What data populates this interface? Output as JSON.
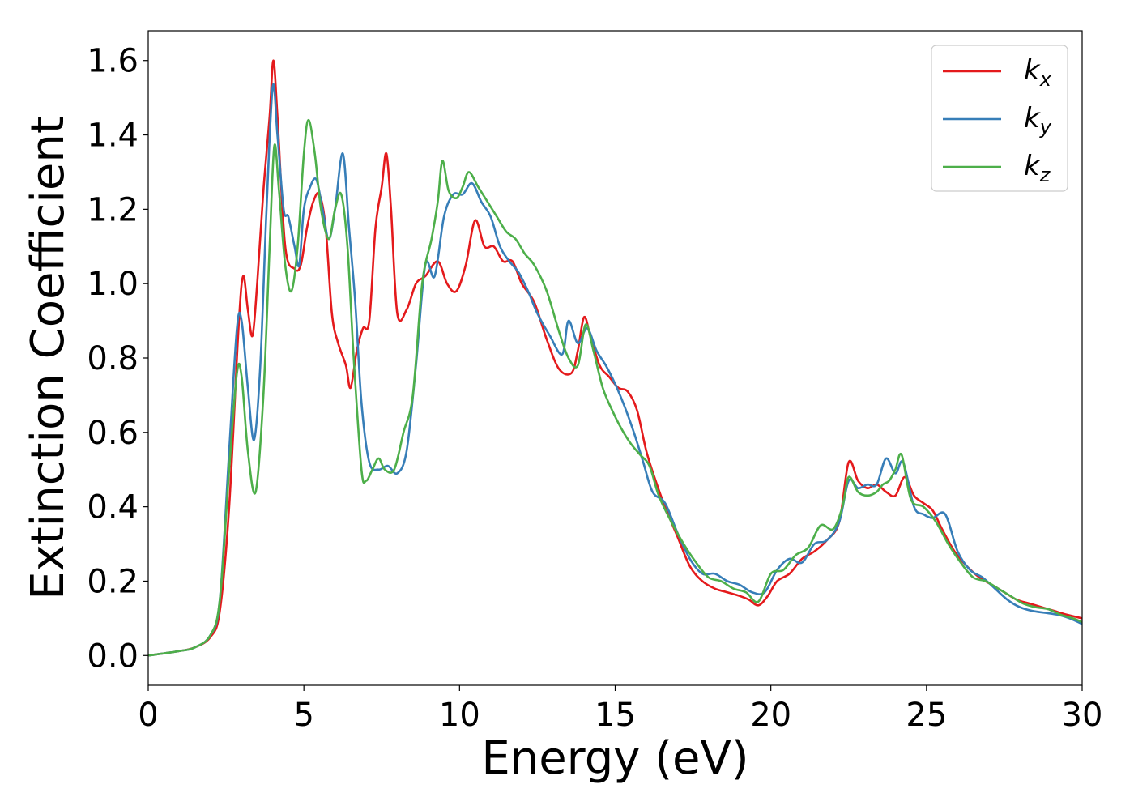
{
  "chart_data": {
    "type": "line",
    "xlabel": "Energy (eV)",
    "ylabel": "Extinction Coefficient",
    "xlim": [
      0,
      30
    ],
    "ylim": [
      -0.08,
      1.68
    ],
    "xticks": [
      0,
      5,
      10,
      15,
      20,
      25,
      30
    ],
    "xtick_labels": [
      "0",
      "5",
      "10",
      "15",
      "20",
      "25",
      "30"
    ],
    "yticks": [
      0.0,
      0.2,
      0.4,
      0.6,
      0.8,
      1.0,
      1.2,
      1.4,
      1.6
    ],
    "ytick_labels": [
      "0.0",
      "0.2",
      "0.4",
      "0.6",
      "0.8",
      "1.0",
      "1.2",
      "1.4",
      "1.6"
    ],
    "grid": false,
    "legend_position": "top-right",
    "series": [
      {
        "name": "k_x",
        "label_main": "k",
        "label_sub": "x",
        "color": "#e41a1c",
        "points": [
          [
            0,
            0.0
          ],
          [
            1,
            0.012
          ],
          [
            1.5,
            0.022
          ],
          [
            2,
            0.05
          ],
          [
            2.3,
            0.12
          ],
          [
            2.6,
            0.4
          ],
          [
            2.9,
            0.88
          ],
          [
            3.05,
            1.02
          ],
          [
            3.2,
            0.93
          ],
          [
            3.35,
            0.86
          ],
          [
            3.5,
            1.0
          ],
          [
            3.7,
            1.25
          ],
          [
            3.9,
            1.45
          ],
          [
            4.02,
            1.6
          ],
          [
            4.15,
            1.45
          ],
          [
            4.4,
            1.1
          ],
          [
            4.7,
            1.04
          ],
          [
            4.9,
            1.05
          ],
          [
            5.1,
            1.15
          ],
          [
            5.3,
            1.22
          ],
          [
            5.5,
            1.24
          ],
          [
            5.7,
            1.15
          ],
          [
            5.9,
            0.92
          ],
          [
            6.1,
            0.84
          ],
          [
            6.35,
            0.78
          ],
          [
            6.5,
            0.72
          ],
          [
            6.7,
            0.82
          ],
          [
            6.9,
            0.88
          ],
          [
            7.1,
            0.9
          ],
          [
            7.3,
            1.15
          ],
          [
            7.5,
            1.26
          ],
          [
            7.65,
            1.35
          ],
          [
            7.8,
            1.2
          ],
          [
            8.0,
            0.92
          ],
          [
            8.3,
            0.93
          ],
          [
            8.6,
            1.0
          ],
          [
            8.9,
            1.02
          ],
          [
            9.3,
            1.06
          ],
          [
            9.6,
            1.0
          ],
          [
            9.9,
            0.98
          ],
          [
            10.2,
            1.05
          ],
          [
            10.5,
            1.17
          ],
          [
            10.8,
            1.1
          ],
          [
            11.1,
            1.1
          ],
          [
            11.4,
            1.06
          ],
          [
            11.7,
            1.06
          ],
          [
            12.0,
            1.0
          ],
          [
            12.4,
            0.95
          ],
          [
            12.8,
            0.85
          ],
          [
            13.2,
            0.77
          ],
          [
            13.6,
            0.76
          ],
          [
            13.8,
            0.82
          ],
          [
            14.0,
            0.91
          ],
          [
            14.2,
            0.86
          ],
          [
            14.5,
            0.78
          ],
          [
            14.8,
            0.75
          ],
          [
            15.1,
            0.72
          ],
          [
            15.4,
            0.71
          ],
          [
            15.7,
            0.66
          ],
          [
            16.0,
            0.55
          ],
          [
            16.3,
            0.47
          ],
          [
            16.6,
            0.4
          ],
          [
            17.0,
            0.32
          ],
          [
            17.4,
            0.24
          ],
          [
            17.8,
            0.2
          ],
          [
            18.2,
            0.18
          ],
          [
            18.6,
            0.17
          ],
          [
            19.0,
            0.16
          ],
          [
            19.3,
            0.15
          ],
          [
            19.6,
            0.135
          ],
          [
            19.9,
            0.16
          ],
          [
            20.2,
            0.2
          ],
          [
            20.6,
            0.22
          ],
          [
            21.0,
            0.26
          ],
          [
            21.4,
            0.28
          ],
          [
            21.8,
            0.31
          ],
          [
            22.2,
            0.36
          ],
          [
            22.5,
            0.52
          ],
          [
            22.8,
            0.47
          ],
          [
            23.1,
            0.45
          ],
          [
            23.4,
            0.46
          ],
          [
            23.7,
            0.44
          ],
          [
            24.0,
            0.43
          ],
          [
            24.3,
            0.48
          ],
          [
            24.6,
            0.43
          ],
          [
            24.9,
            0.41
          ],
          [
            25.2,
            0.39
          ],
          [
            25.5,
            0.34
          ],
          [
            25.9,
            0.28
          ],
          [
            26.3,
            0.24
          ],
          [
            26.7,
            0.21
          ],
          [
            27.1,
            0.19
          ],
          [
            27.5,
            0.17
          ],
          [
            27.9,
            0.15
          ],
          [
            28.3,
            0.14
          ],
          [
            28.7,
            0.13
          ],
          [
            29.1,
            0.12
          ],
          [
            29.5,
            0.11
          ],
          [
            30.0,
            0.1
          ]
        ]
      },
      {
        "name": "k_y",
        "label_main": "k",
        "label_sub": "y",
        "color": "#377eb8",
        "points": [
          [
            0,
            0.0
          ],
          [
            1,
            0.012
          ],
          [
            1.5,
            0.022
          ],
          [
            2,
            0.055
          ],
          [
            2.3,
            0.15
          ],
          [
            2.6,
            0.55
          ],
          [
            2.85,
            0.88
          ],
          [
            3.0,
            0.9
          ],
          [
            3.2,
            0.72
          ],
          [
            3.4,
            0.58
          ],
          [
            3.6,
            0.78
          ],
          [
            3.8,
            1.2
          ],
          [
            4.0,
            1.53
          ],
          [
            4.15,
            1.4
          ],
          [
            4.35,
            1.2
          ],
          [
            4.5,
            1.18
          ],
          [
            4.7,
            1.1
          ],
          [
            4.85,
            1.05
          ],
          [
            5.0,
            1.2
          ],
          [
            5.2,
            1.26
          ],
          [
            5.4,
            1.28
          ],
          [
            5.6,
            1.2
          ],
          [
            5.8,
            1.12
          ],
          [
            6.0,
            1.2
          ],
          [
            6.25,
            1.35
          ],
          [
            6.45,
            1.15
          ],
          [
            6.65,
            0.95
          ],
          [
            6.85,
            0.68
          ],
          [
            7.1,
            0.52
          ],
          [
            7.4,
            0.5
          ],
          [
            7.7,
            0.51
          ],
          [
            8.0,
            0.49
          ],
          [
            8.3,
            0.55
          ],
          [
            8.6,
            0.78
          ],
          [
            8.9,
            1.05
          ],
          [
            9.2,
            1.02
          ],
          [
            9.5,
            1.18
          ],
          [
            9.8,
            1.24
          ],
          [
            10.1,
            1.24
          ],
          [
            10.4,
            1.27
          ],
          [
            10.7,
            1.22
          ],
          [
            11.0,
            1.18
          ],
          [
            11.3,
            1.1
          ],
          [
            11.6,
            1.06
          ],
          [
            11.9,
            1.03
          ],
          [
            12.2,
            0.98
          ],
          [
            12.5,
            0.92
          ],
          [
            12.9,
            0.86
          ],
          [
            13.3,
            0.81
          ],
          [
            13.5,
            0.9
          ],
          [
            13.8,
            0.84
          ],
          [
            14.1,
            0.88
          ],
          [
            14.4,
            0.82
          ],
          [
            14.7,
            0.78
          ],
          [
            15.0,
            0.73
          ],
          [
            15.3,
            0.67
          ],
          [
            15.6,
            0.6
          ],
          [
            15.9,
            0.52
          ],
          [
            16.2,
            0.44
          ],
          [
            16.6,
            0.41
          ],
          [
            17.0,
            0.33
          ],
          [
            17.4,
            0.26
          ],
          [
            17.8,
            0.22
          ],
          [
            18.2,
            0.22
          ],
          [
            18.6,
            0.2
          ],
          [
            19.0,
            0.19
          ],
          [
            19.4,
            0.17
          ],
          [
            19.8,
            0.17
          ],
          [
            20.2,
            0.23
          ],
          [
            20.6,
            0.26
          ],
          [
            21.0,
            0.25
          ],
          [
            21.4,
            0.3
          ],
          [
            21.8,
            0.31
          ],
          [
            22.2,
            0.36
          ],
          [
            22.5,
            0.47
          ],
          [
            22.8,
            0.45
          ],
          [
            23.1,
            0.46
          ],
          [
            23.4,
            0.46
          ],
          [
            23.7,
            0.53
          ],
          [
            24.0,
            0.49
          ],
          [
            24.25,
            0.52
          ],
          [
            24.6,
            0.4
          ],
          [
            24.9,
            0.38
          ],
          [
            25.2,
            0.37
          ],
          [
            25.6,
            0.38
          ],
          [
            26.0,
            0.28
          ],
          [
            26.4,
            0.23
          ],
          [
            26.8,
            0.21
          ],
          [
            27.2,
            0.18
          ],
          [
            27.6,
            0.15
          ],
          [
            28.0,
            0.13
          ],
          [
            28.4,
            0.12
          ],
          [
            28.8,
            0.115
          ],
          [
            29.2,
            0.11
          ],
          [
            29.6,
            0.1
          ],
          [
            30.0,
            0.085
          ]
        ]
      },
      {
        "name": "k_z",
        "label_main": "k",
        "label_sub": "z",
        "color": "#4daf4a",
        "points": [
          [
            0,
            0.0
          ],
          [
            1,
            0.012
          ],
          [
            1.5,
            0.022
          ],
          [
            2,
            0.055
          ],
          [
            2.3,
            0.15
          ],
          [
            2.6,
            0.5
          ],
          [
            2.85,
            0.76
          ],
          [
            3.0,
            0.75
          ],
          [
            3.2,
            0.55
          ],
          [
            3.45,
            0.44
          ],
          [
            3.7,
            0.7
          ],
          [
            3.9,
            1.1
          ],
          [
            4.05,
            1.37
          ],
          [
            4.2,
            1.25
          ],
          [
            4.4,
            1.05
          ],
          [
            4.6,
            0.98
          ],
          [
            4.8,
            1.1
          ],
          [
            5.0,
            1.35
          ],
          [
            5.15,
            1.44
          ],
          [
            5.35,
            1.35
          ],
          [
            5.55,
            1.2
          ],
          [
            5.8,
            1.12
          ],
          [
            6.0,
            1.2
          ],
          [
            6.2,
            1.24
          ],
          [
            6.4,
            1.1
          ],
          [
            6.6,
            0.8
          ],
          [
            6.85,
            0.5
          ],
          [
            7.0,
            0.47
          ],
          [
            7.2,
            0.5
          ],
          [
            7.4,
            0.53
          ],
          [
            7.6,
            0.5
          ],
          [
            7.9,
            0.5
          ],
          [
            8.2,
            0.6
          ],
          [
            8.5,
            0.7
          ],
          [
            8.8,
            1.0
          ],
          [
            9.1,
            1.12
          ],
          [
            9.3,
            1.22
          ],
          [
            9.45,
            1.33
          ],
          [
            9.65,
            1.25
          ],
          [
            9.9,
            1.23
          ],
          [
            10.1,
            1.26
          ],
          [
            10.3,
            1.3
          ],
          [
            10.6,
            1.26
          ],
          [
            10.9,
            1.22
          ],
          [
            11.2,
            1.18
          ],
          [
            11.5,
            1.14
          ],
          [
            11.8,
            1.12
          ],
          [
            12.1,
            1.08
          ],
          [
            12.4,
            1.05
          ],
          [
            12.8,
            0.98
          ],
          [
            13.2,
            0.87
          ],
          [
            13.5,
            0.8
          ],
          [
            13.8,
            0.78
          ],
          [
            14.05,
            0.89
          ],
          [
            14.3,
            0.82
          ],
          [
            14.6,
            0.72
          ],
          [
            14.9,
            0.66
          ],
          [
            15.2,
            0.61
          ],
          [
            15.5,
            0.57
          ],
          [
            15.8,
            0.54
          ],
          [
            16.1,
            0.51
          ],
          [
            16.4,
            0.43
          ],
          [
            16.8,
            0.36
          ],
          [
            17.2,
            0.3
          ],
          [
            17.6,
            0.25
          ],
          [
            18.0,
            0.21
          ],
          [
            18.4,
            0.2
          ],
          [
            18.8,
            0.18
          ],
          [
            19.2,
            0.17
          ],
          [
            19.6,
            0.145
          ],
          [
            20.0,
            0.22
          ],
          [
            20.4,
            0.23
          ],
          [
            20.8,
            0.27
          ],
          [
            21.2,
            0.29
          ],
          [
            21.6,
            0.35
          ],
          [
            22.0,
            0.34
          ],
          [
            22.3,
            0.4
          ],
          [
            22.5,
            0.48
          ],
          [
            22.8,
            0.44
          ],
          [
            23.1,
            0.43
          ],
          [
            23.4,
            0.44
          ],
          [
            23.6,
            0.46
          ],
          [
            23.8,
            0.47
          ],
          [
            24.0,
            0.5
          ],
          [
            24.2,
            0.54
          ],
          [
            24.5,
            0.42
          ],
          [
            24.9,
            0.4
          ],
          [
            25.3,
            0.36
          ],
          [
            25.7,
            0.3
          ],
          [
            26.1,
            0.25
          ],
          [
            26.5,
            0.21
          ],
          [
            26.9,
            0.2
          ],
          [
            27.3,
            0.18
          ],
          [
            27.7,
            0.16
          ],
          [
            28.1,
            0.14
          ],
          [
            28.5,
            0.13
          ],
          [
            28.9,
            0.125
          ],
          [
            29.3,
            0.11
          ],
          [
            29.7,
            0.1
          ],
          [
            30.0,
            0.09
          ]
        ]
      }
    ]
  }
}
